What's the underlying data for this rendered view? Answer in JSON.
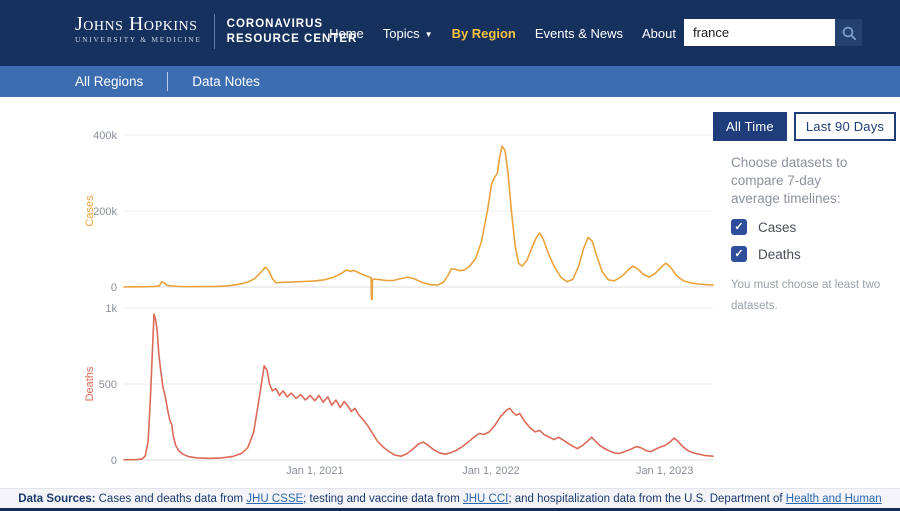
{
  "header": {
    "logo": {
      "line1": "Johns Hopkins",
      "line2": "University & Medicine"
    },
    "site_title_line1": "CORONAVIRUS",
    "site_title_line2": "RESOURCE CENTER",
    "nav": [
      {
        "label": "Home"
      },
      {
        "label": "Topics",
        "has_dropdown": true
      },
      {
        "label": "By Region",
        "active": true
      },
      {
        "label": "Events & News"
      },
      {
        "label": "About"
      }
    ],
    "search": {
      "value": "france",
      "icon": "magnifier"
    }
  },
  "subnav": {
    "items": [
      "All Regions",
      "Data Notes"
    ]
  },
  "controls": {
    "time_buttons": [
      {
        "label": "All Time",
        "active": true
      },
      {
        "label": "Last 90 Days",
        "active": false
      }
    ],
    "prompt_lines": [
      "Choose datasets to",
      "compare 7-day",
      "average timelines:"
    ],
    "datasets": [
      {
        "label": "Cases",
        "checked": true
      },
      {
        "label": "Deaths",
        "checked": true
      }
    ],
    "note_lines": [
      "You must choose at least two",
      "datasets."
    ]
  },
  "colors": {
    "header_navy": "#17315F",
    "subnav_blue": "#3D6DB1",
    "accent_gold": "#F5C242",
    "button_navy": "#1F3D7A",
    "checkbox_blue": "#2E4D9B",
    "cases_orange": "#E9A23C",
    "deaths_red": "#DB6A59",
    "tick_gray": "#8a8f98",
    "grid_gray": "#ededed"
  },
  "chart_data": [
    {
      "type": "line",
      "name": "Cases",
      "ylabel": "Cases",
      "color": "#E9A23C",
      "ylim": [
        0,
        400000
      ],
      "grid": true,
      "yticks": [
        {
          "v": 0,
          "label": "0"
        },
        {
          "v": 200000,
          "label": "200k"
        },
        {
          "v": 400000,
          "label": "400k"
        }
      ],
      "show_xticks": false,
      "xticks": [
        {
          "t": 0.324,
          "label": "Jan 1, 2021"
        },
        {
          "t": 0.623,
          "label": "Jan 1, 2022"
        },
        {
          "t": 0.918,
          "label": "Jan 1, 2023"
        }
      ],
      "x_unit": "fraction of timeline (early 2020 to March 2023), 7-day average new cases",
      "points": [
        [
          0,
          300
        ],
        [
          0.02,
          400
        ],
        [
          0.04,
          800
        ],
        [
          0.052,
          1500
        ],
        [
          0.06,
          3000
        ],
        [
          0.064,
          14000
        ],
        [
          0.068,
          11000
        ],
        [
          0.072,
          5000
        ],
        [
          0.08,
          3000
        ],
        [
          0.095,
          1200
        ],
        [
          0.115,
          800
        ],
        [
          0.135,
          1000
        ],
        [
          0.155,
          1600
        ],
        [
          0.175,
          3000
        ],
        [
          0.195,
          7000
        ],
        [
          0.21,
          13000
        ],
        [
          0.222,
          22000
        ],
        [
          0.232,
          38000
        ],
        [
          0.24,
          52000
        ],
        [
          0.246,
          42000
        ],
        [
          0.252,
          22000
        ],
        [
          0.258,
          11000
        ],
        [
          0.268,
          12500
        ],
        [
          0.285,
          13000
        ],
        [
          0.305,
          14500
        ],
        [
          0.324,
          16000
        ],
        [
          0.34,
          19000
        ],
        [
          0.355,
          25000
        ],
        [
          0.368,
          35000
        ],
        [
          0.378,
          45000
        ],
        [
          0.384,
          41000
        ],
        [
          0.39,
          44000
        ],
        [
          0.398,
          38000
        ],
        [
          0.408,
          31000
        ],
        [
          0.417,
          26000
        ],
        [
          0.4195,
          24000
        ],
        [
          0.42,
          -33000
        ],
        [
          0.4212,
          -33000
        ],
        [
          0.422,
          21000
        ],
        [
          0.432,
          20000
        ],
        [
          0.445,
          17000
        ],
        [
          0.458,
          17500
        ],
        [
          0.47,
          22000
        ],
        [
          0.482,
          26000
        ],
        [
          0.492,
          22000
        ],
        [
          0.505,
          13000
        ],
        [
          0.52,
          6000
        ],
        [
          0.532,
          5000
        ],
        [
          0.542,
          12000
        ],
        [
          0.55,
          30000
        ],
        [
          0.556,
          48000
        ],
        [
          0.562,
          47000
        ],
        [
          0.57,
          43000
        ],
        [
          0.578,
          45000
        ],
        [
          0.587,
          55000
        ],
        [
          0.597,
          75000
        ],
        [
          0.607,
          120000
        ],
        [
          0.617,
          200000
        ],
        [
          0.624,
          270000
        ],
        [
          0.629,
          288000
        ],
        [
          0.634,
          300000
        ],
        [
          0.638,
          345000
        ],
        [
          0.642,
          371000
        ],
        [
          0.647,
          358000
        ],
        [
          0.652,
          300000
        ],
        [
          0.658,
          195000
        ],
        [
          0.664,
          110000
        ],
        [
          0.67,
          62000
        ],
        [
          0.676,
          55000
        ],
        [
          0.684,
          70000
        ],
        [
          0.693,
          105000
        ],
        [
          0.7,
          130000
        ],
        [
          0.706,
          142000
        ],
        [
          0.712,
          125000
        ],
        [
          0.72,
          90000
        ],
        [
          0.73,
          55000
        ],
        [
          0.742,
          25000
        ],
        [
          0.752,
          14000
        ],
        [
          0.762,
          20000
        ],
        [
          0.772,
          55000
        ],
        [
          0.78,
          100000
        ],
        [
          0.788,
          131000
        ],
        [
          0.795,
          120000
        ],
        [
          0.803,
          80000
        ],
        [
          0.812,
          40000
        ],
        [
          0.822,
          19000
        ],
        [
          0.832,
          16000
        ],
        [
          0.845,
          28000
        ],
        [
          0.856,
          45000
        ],
        [
          0.864,
          55000
        ],
        [
          0.872,
          48000
        ],
        [
          0.882,
          33000
        ],
        [
          0.892,
          26000
        ],
        [
          0.902,
          36000
        ],
        [
          0.912,
          52000
        ],
        [
          0.92,
          63000
        ],
        [
          0.928,
          52000
        ],
        [
          0.938,
          30000
        ],
        [
          0.95,
          16000
        ],
        [
          0.965,
          10000
        ],
        [
          0.98,
          7000
        ],
        [
          1,
          5000
        ]
      ]
    },
    {
      "type": "line",
      "name": "Deaths",
      "ylabel": "Deaths",
      "color": "#DB6A59",
      "ylim": [
        0,
        1000
      ],
      "grid": true,
      "yticks": [
        {
          "v": 0,
          "label": "0"
        },
        {
          "v": 500,
          "label": "500"
        },
        {
          "v": 1000,
          "label": "1k"
        }
      ],
      "show_xticks": true,
      "xticks": [
        {
          "t": 0.324,
          "label": "Jan 1, 2021"
        },
        {
          "t": 0.623,
          "label": "Jan 1, 2022"
        },
        {
          "t": 0.918,
          "label": "Jan 1, 2023"
        }
      ],
      "x_unit": "fraction of timeline (early 2020 to March 2023), 7-day average deaths",
      "points": [
        [
          0,
          2
        ],
        [
          0.02,
          2
        ],
        [
          0.03,
          6
        ],
        [
          0.036,
          25
        ],
        [
          0.041,
          120
        ],
        [
          0.045,
          420
        ],
        [
          0.048,
          700
        ],
        [
          0.051,
          960
        ],
        [
          0.0535,
          925
        ],
        [
          0.056,
          860
        ],
        [
          0.059,
          700
        ],
        [
          0.062,
          600
        ],
        [
          0.066,
          480
        ],
        [
          0.07,
          420
        ],
        [
          0.074,
          330
        ],
        [
          0.078,
          260
        ],
        [
          0.081,
          235
        ],
        [
          0.084,
          150
        ],
        [
          0.088,
          95
        ],
        [
          0.093,
          60
        ],
        [
          0.1,
          38
        ],
        [
          0.11,
          22
        ],
        [
          0.125,
          14
        ],
        [
          0.145,
          11
        ],
        [
          0.165,
          14
        ],
        [
          0.185,
          24
        ],
        [
          0.2,
          45
        ],
        [
          0.21,
          80
        ],
        [
          0.22,
          180
        ],
        [
          0.23,
          420
        ],
        [
          0.238,
          620
        ],
        [
          0.243,
          590
        ],
        [
          0.247,
          500
        ],
        [
          0.252,
          455
        ],
        [
          0.258,
          470
        ],
        [
          0.264,
          425
        ],
        [
          0.27,
          455
        ],
        [
          0.277,
          415
        ],
        [
          0.284,
          440
        ],
        [
          0.292,
          405
        ],
        [
          0.3,
          430
        ],
        [
          0.308,
          395
        ],
        [
          0.316,
          425
        ],
        [
          0.324,
          390
        ],
        [
          0.331,
          425
        ],
        [
          0.338,
          380
        ],
        [
          0.346,
          415
        ],
        [
          0.353,
          360
        ],
        [
          0.36,
          395
        ],
        [
          0.367,
          345
        ],
        [
          0.374,
          385
        ],
        [
          0.38,
          355
        ],
        [
          0.386,
          320
        ],
        [
          0.392,
          340
        ],
        [
          0.398,
          300
        ],
        [
          0.406,
          265
        ],
        [
          0.414,
          225
        ],
        [
          0.422,
          175
        ],
        [
          0.43,
          125
        ],
        [
          0.44,
          85
        ],
        [
          0.45,
          55
        ],
        [
          0.46,
          32
        ],
        [
          0.47,
          25
        ],
        [
          0.48,
          40
        ],
        [
          0.49,
          70
        ],
        [
          0.5,
          105
        ],
        [
          0.508,
          118
        ],
        [
          0.516,
          98
        ],
        [
          0.525,
          70
        ],
        [
          0.535,
          48
        ],
        [
          0.545,
          38
        ],
        [
          0.555,
          48
        ],
        [
          0.565,
          65
        ],
        [
          0.575,
          90
        ],
        [
          0.585,
          120
        ],
        [
          0.594,
          150
        ],
        [
          0.603,
          175
        ],
        [
          0.611,
          168
        ],
        [
          0.62,
          185
        ],
        [
          0.63,
          230
        ],
        [
          0.64,
          290
        ],
        [
          0.65,
          330
        ],
        [
          0.655,
          340
        ],
        [
          0.66,
          315
        ],
        [
          0.666,
          295
        ],
        [
          0.672,
          305
        ],
        [
          0.68,
          255
        ],
        [
          0.69,
          210
        ],
        [
          0.698,
          185
        ],
        [
          0.706,
          195
        ],
        [
          0.714,
          165
        ],
        [
          0.722,
          150
        ],
        [
          0.73,
          135
        ],
        [
          0.738,
          150
        ],
        [
          0.746,
          130
        ],
        [
          0.754,
          110
        ],
        [
          0.762,
          90
        ],
        [
          0.77,
          75
        ],
        [
          0.778,
          95
        ],
        [
          0.786,
          120
        ],
        [
          0.794,
          150
        ],
        [
          0.8,
          125
        ],
        [
          0.808,
          95
        ],
        [
          0.816,
          75
        ],
        [
          0.824,
          60
        ],
        [
          0.832,
          48
        ],
        [
          0.84,
          42
        ],
        [
          0.85,
          55
        ],
        [
          0.86,
          70
        ],
        [
          0.87,
          88
        ],
        [
          0.878,
          80
        ],
        [
          0.886,
          62
        ],
        [
          0.894,
          55
        ],
        [
          0.902,
          70
        ],
        [
          0.91,
          85
        ],
        [
          0.918,
          95
        ],
        [
          0.926,
          115
        ],
        [
          0.934,
          145
        ],
        [
          0.94,
          125
        ],
        [
          0.948,
          90
        ],
        [
          0.956,
          65
        ],
        [
          0.964,
          50
        ],
        [
          0.974,
          40
        ],
        [
          0.985,
          30
        ],
        [
          1,
          25
        ]
      ]
    }
  ],
  "footer": {
    "prefix": "Data Sources:",
    "segments": [
      {
        "text": "Cases and deaths data from ",
        "link": false
      },
      {
        "text": "JHU CSSE",
        "link": true
      },
      {
        "text": "; testing and vaccine data from ",
        "link": false
      },
      {
        "text": "JHU CCI",
        "link": true
      },
      {
        "text": "; and hospitalization data from the U.S. Department of ",
        "link": false
      },
      {
        "text": "Health and Human",
        "link": true
      }
    ]
  }
}
